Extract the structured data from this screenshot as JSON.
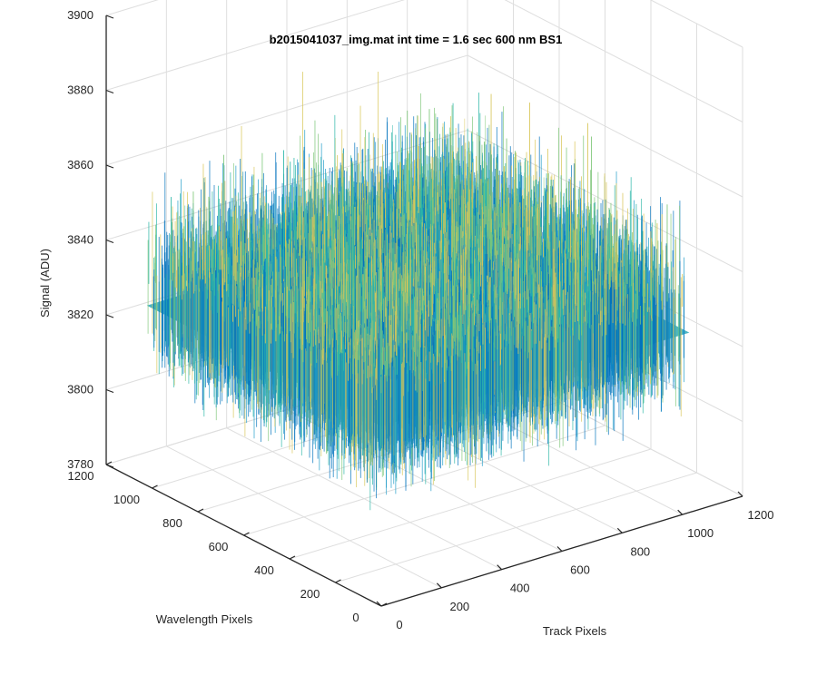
{
  "chart_data": {
    "type": "surface",
    "title": "b2015041037_img.mat int time = 1.6 sec  600 nm BS1",
    "xlabel": "Track Pixels",
    "ylabel": "Wavelength Pixels",
    "zlabel": "Signal (ADU)",
    "xlim": [
      0,
      1200
    ],
    "ylim": [
      0,
      1200
    ],
    "zlim": [
      3780,
      3900
    ],
    "x_ticks": [
      0,
      200,
      400,
      600,
      800,
      1000,
      1200
    ],
    "y_ticks": [
      0,
      200,
      400,
      600,
      800,
      1000,
      1200
    ],
    "z_ticks": [
      3780,
      3800,
      3820,
      3840,
      3860,
      3880,
      3900
    ],
    "surface": {
      "x_range": [
        1,
        1024
      ],
      "y_range": [
        1,
        1024
      ],
      "z_mean": 3828,
      "z_typical_range": [
        3800,
        3885
      ],
      "colormap": [
        "#0072BD",
        "#1E9BC8",
        "#2DB7A8",
        "#7FC77A",
        "#D9C75A"
      ]
    },
    "grid": true
  }
}
